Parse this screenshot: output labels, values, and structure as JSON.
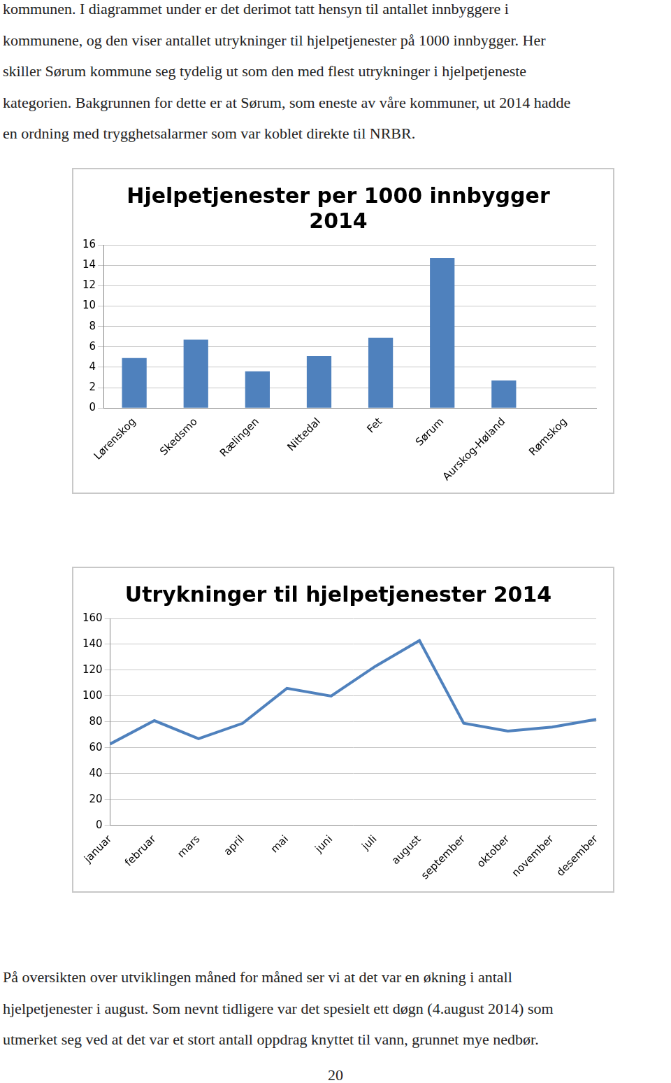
{
  "text_top": [
    "kommunen. I diagrammet under er det derimot tatt hensyn til antallet innbyggere i",
    "kommunene, og den viser antallet utrykninger til hjelpetjenester på 1000 innbygger. Her",
    "skiller Sørum kommune seg tydelig ut som den med flest utrykninger i hjelpetjeneste",
    "kategorien. Bakgrunnen for dette er at Sørum, som eneste av våre kommuner, ut 2014 hadde",
    "en ordning med trygghetsalarmer som var koblet direkte til NRBR."
  ],
  "chart_data": [
    {
      "type": "bar",
      "title": [
        "Hjelpetjenester per 1000 innbygger",
        "2014"
      ],
      "categories": [
        "Lørenskog",
        "Skedsmo",
        "Rælingen",
        "Nittedal",
        "Fet",
        "Sørum",
        "Aurskog-Høland",
        "Rømskog"
      ],
      "values": [
        4.9,
        6.7,
        3.6,
        5.1,
        6.9,
        14.7,
        2.7,
        0
      ],
      "color": "#4f81bd",
      "ylim": [
        0,
        16
      ],
      "yticks": [
        0,
        2,
        4,
        6,
        8,
        10,
        12,
        14,
        16
      ],
      "grid": true
    },
    {
      "type": "line",
      "title": [
        "Utrykninger til hjelpetjenester 2014"
      ],
      "categories": [
        "januar",
        "februar",
        "mars",
        "april",
        "mai",
        "juni",
        "juli",
        "august",
        "september",
        "oktober",
        "november",
        "desember"
      ],
      "values": [
        63,
        81,
        67,
        79,
        106,
        100,
        123,
        143,
        79,
        73,
        76,
        82
      ],
      "color": "#4f81bd",
      "ylim": [
        0,
        160
      ],
      "yticks": [
        0,
        20,
        40,
        60,
        80,
        100,
        120,
        140,
        160
      ],
      "grid": true
    }
  ],
  "text_bottom": [
    "På oversikten over utviklingen måned for måned ser vi at det var en økning i antall",
    "hjelpetjenester i august. Som nevnt tidligere var det spesielt ett døgn (4.august 2014) som",
    "utmerket seg ved at det var et stort antall oppdrag knyttet til vann, grunnet mye nedbør."
  ],
  "page_number": "20"
}
